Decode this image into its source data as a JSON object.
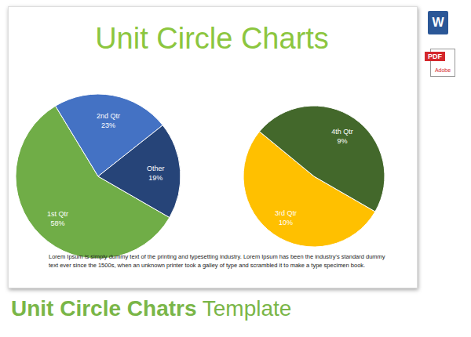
{
  "header": {
    "title": "Unit Circle Charts"
  },
  "chart_data": [
    {
      "type": "pie",
      "categories": [
        "1st Qtr",
        "2nd Qtr",
        "Other"
      ],
      "values": [
        58,
        23,
        19
      ],
      "value_labels": [
        "58%",
        "23%",
        "19%"
      ],
      "colors": [
        "#70ad47",
        "#4472c4",
        "#264478"
      ],
      "data_labels": true
    },
    {
      "type": "pie",
      "categories": [
        "3rd Qtr",
        "4th Qtr"
      ],
      "values": [
        10,
        9
      ],
      "value_labels": [
        "10%",
        "9%"
      ],
      "colors": [
        "#ffc000",
        "#43682b"
      ],
      "data_labels": true
    }
  ],
  "body": {
    "text": "Lorem Ipsum is simply dummy text of the printing and typesetting industry. Lorem Ipsum has been the industry's standard dummy text ever since the 1500s, when an unknown printer took a galley of type and scrambled it to make a type specimen book."
  },
  "caption": [
    "Unit Circle Chatrs",
    "Template"
  ],
  "icons": [
    "W",
    "PDF",
    "Adobe"
  ]
}
